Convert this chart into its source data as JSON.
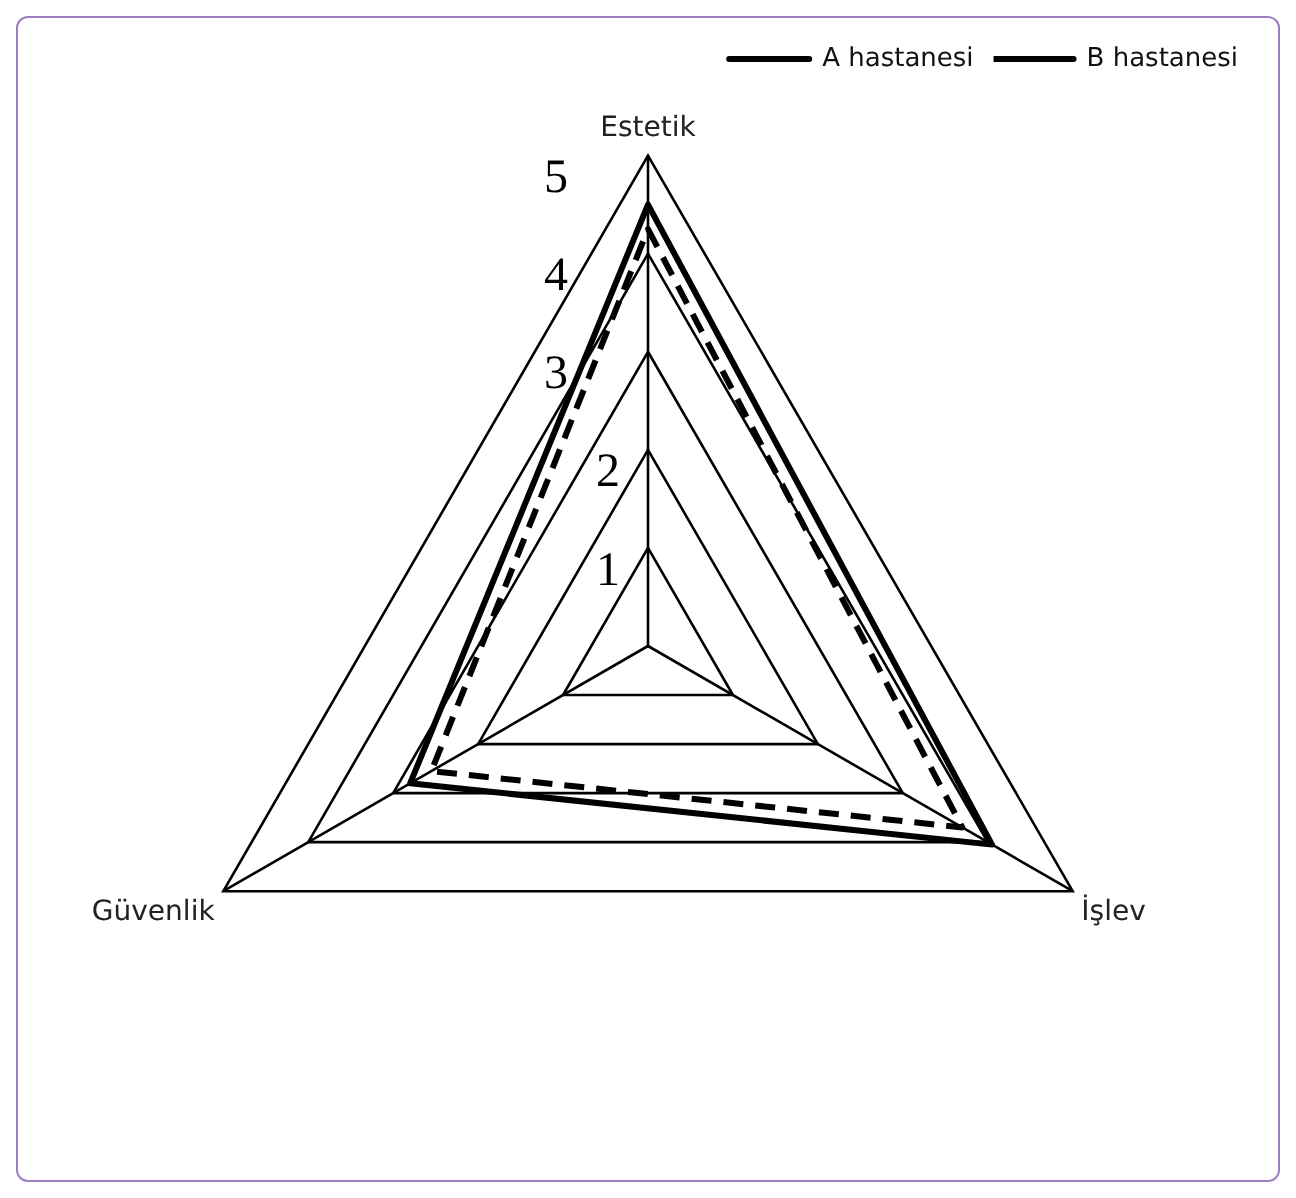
{
  "chart_data": {
    "type": "radar",
    "categories": [
      "Estetik",
      "İşlev",
      "Güvenlik"
    ],
    "series": [
      {
        "name": "A hastanesi",
        "color": "#000000",
        "values": [
          4.5,
          4.05,
          2.8
        ],
        "line_style": "solid"
      },
      {
        "name": "B hastanesi",
        "color": "#000000",
        "values": [
          4.25,
          3.7,
          2.55
        ],
        "line_style": "dashed"
      }
    ],
    "ylim": [
      0,
      5
    ],
    "yticks": [
      1,
      2,
      3,
      4,
      5
    ],
    "grid": true,
    "legend": "top right",
    "marker": "none"
  }
}
